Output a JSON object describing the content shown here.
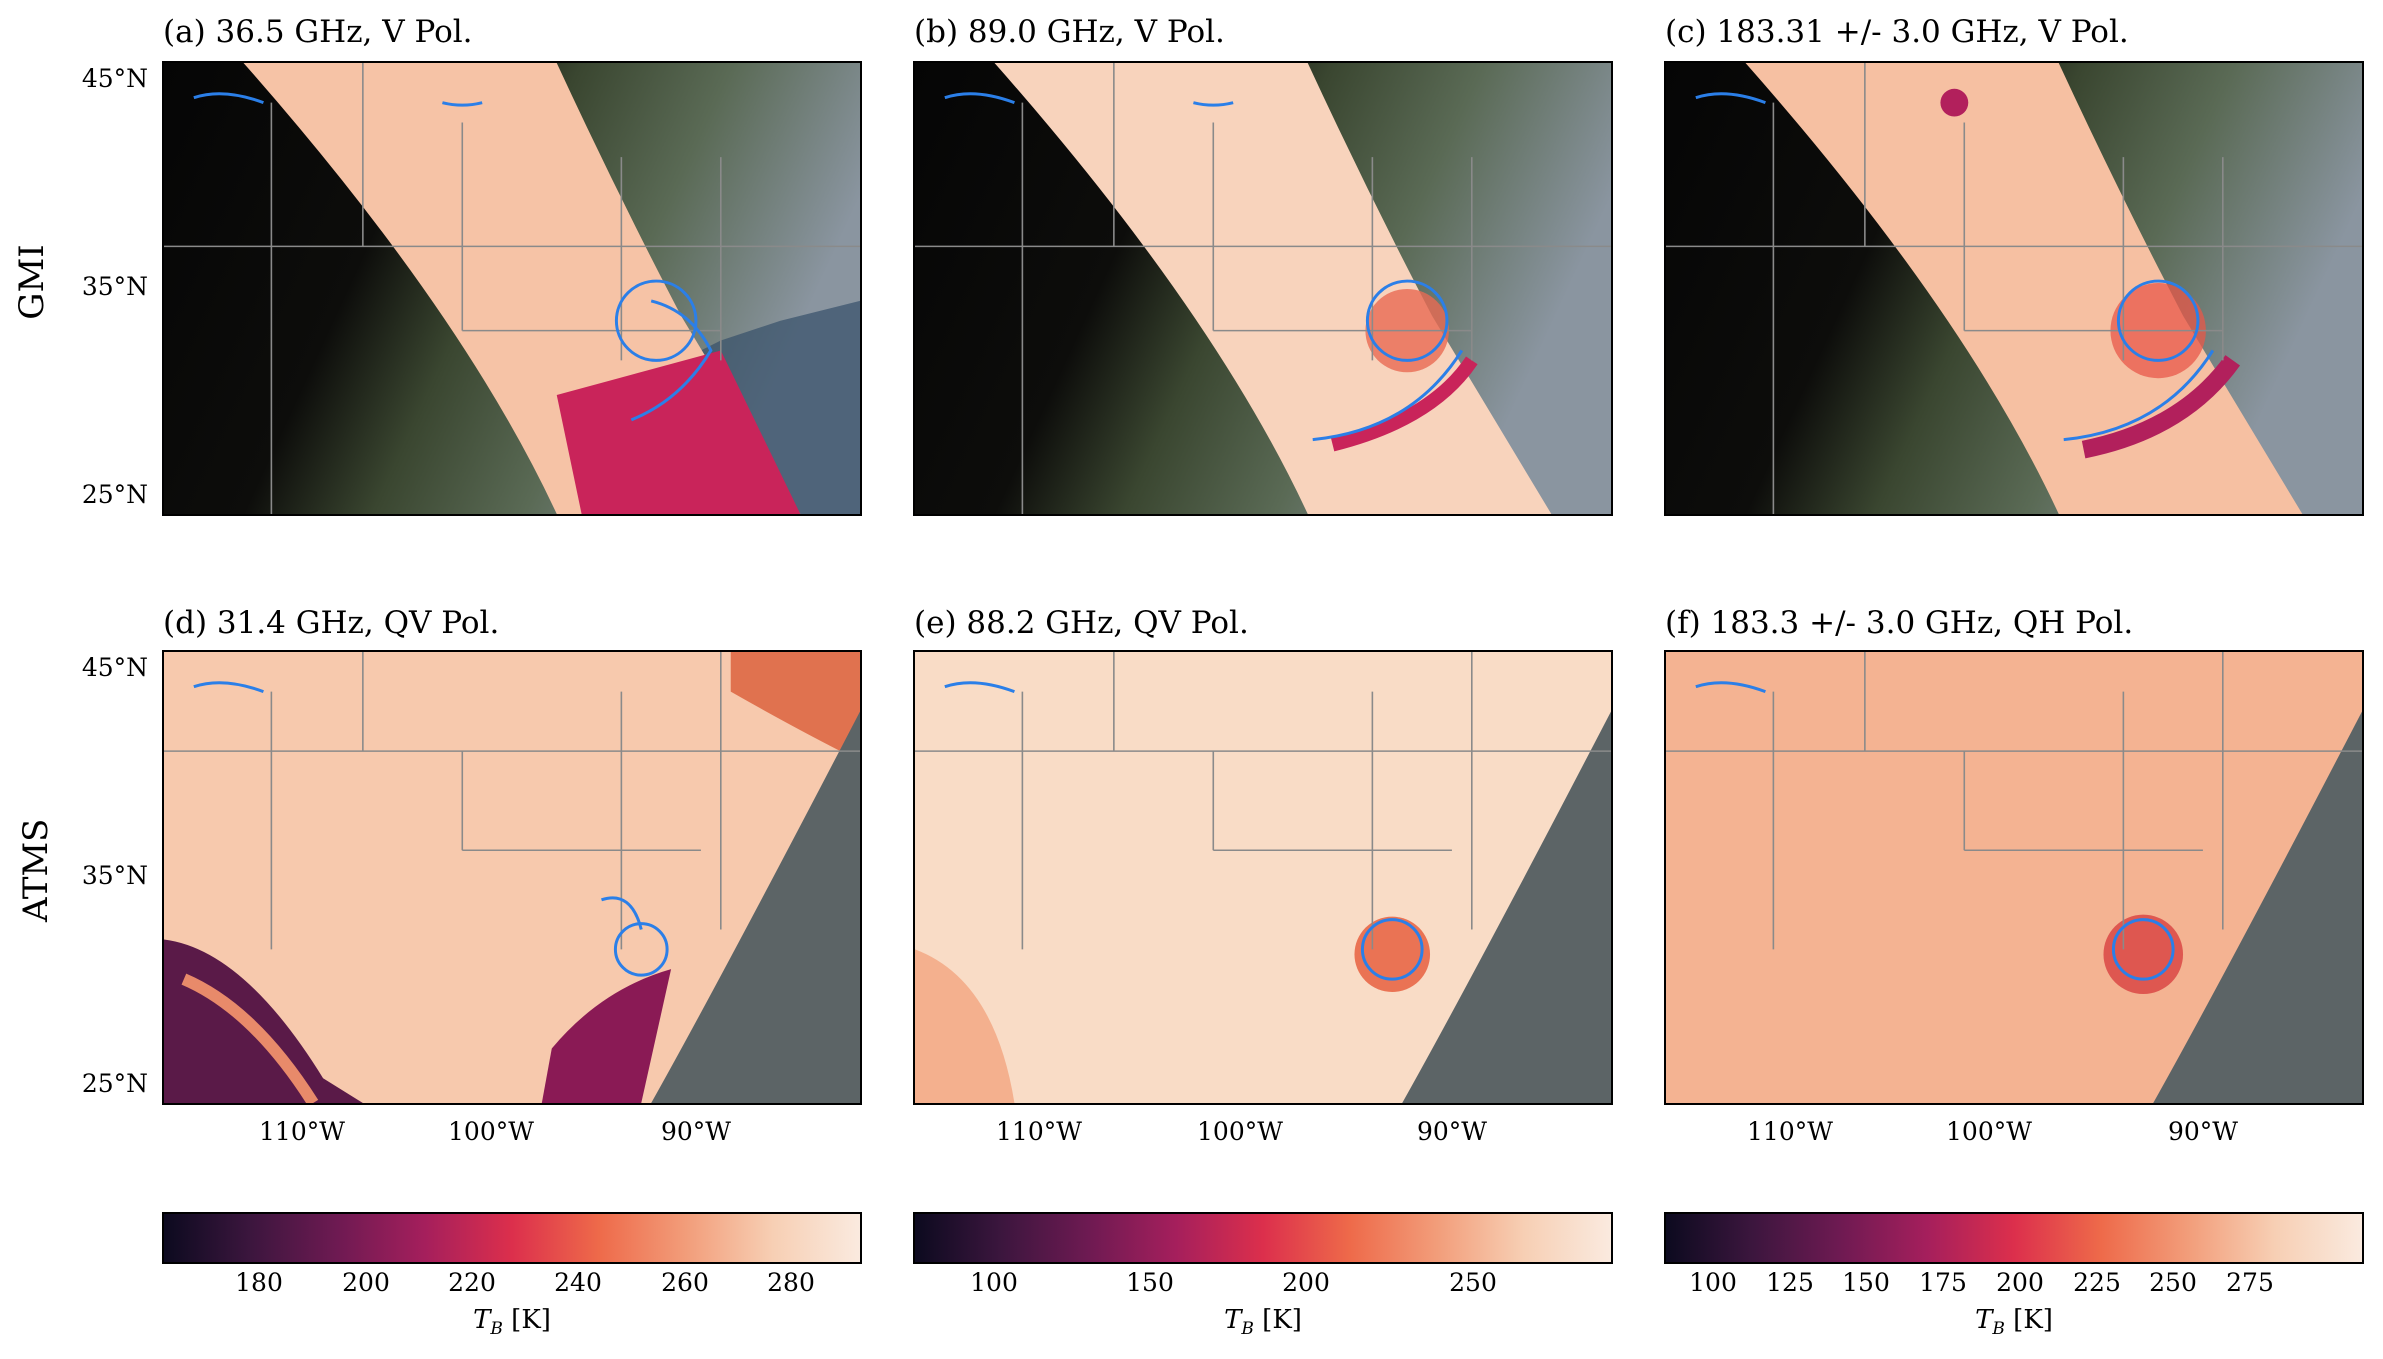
{
  "row_labels": {
    "top": "GMI",
    "bottom": "ATMS"
  },
  "panels": [
    {
      "id": "a",
      "title": "(a) 36.5 GHz, V Pol."
    },
    {
      "id": "b",
      "title": "(b) 89.0 GHz, V Pol."
    },
    {
      "id": "c",
      "title": "(c) 183.31 +/- 3.0 GHz, V Pol."
    },
    {
      "id": "d",
      "title": "(d) 31.4 GHz, QV Pol."
    },
    {
      "id": "e",
      "title": "(e) 88.2 GHz, QV Pol."
    },
    {
      "id": "f",
      "title": "(f) 183.3 +/- 3.0 GHz, QH Pol."
    }
  ],
  "lat_labels": [
    "45°N",
    "35°N",
    "25°N"
  ],
  "lon_labels": [
    "110°W",
    "100°W",
    "90°W"
  ],
  "colorbars": [
    {
      "label": "T_B [K]",
      "label_main": "T",
      "label_sub": "B",
      "label_unit": " [K]",
      "ticks": [
        "180",
        "200",
        "220",
        "240",
        "260",
        "280"
      ]
    },
    {
      "label": "T_B [K]",
      "label_main": "T",
      "label_sub": "B",
      "label_unit": " [K]",
      "ticks": [
        "100",
        "150",
        "200",
        "250"
      ]
    },
    {
      "label": "T_B [K]",
      "label_main": "T",
      "label_sub": "B",
      "label_unit": " [K]",
      "ticks": [
        "100",
        "125",
        "150",
        "175",
        "200",
        "225",
        "250",
        "275"
      ]
    }
  ],
  "colors": {
    "contour": "#2b7fe8",
    "border": "#8a8a8a",
    "background": "#000000"
  }
}
